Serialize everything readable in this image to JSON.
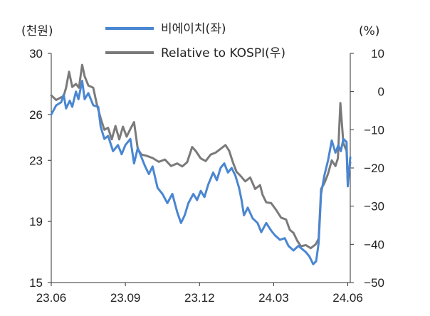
{
  "chart_data": {
    "type": "line",
    "left_unit": "(천원)",
    "right_unit": "(%)",
    "x_labels": [
      "23.06",
      "23.09",
      "23.12",
      "24.03",
      "24.06"
    ],
    "x_range": [
      0,
      12.1
    ],
    "left_axis": {
      "ticks": [
        "30",
        "26",
        "23",
        "19",
        "15"
      ],
      "ylim": [
        15,
        30
      ]
    },
    "right_axis": {
      "ticks": [
        "10",
        "0",
        "-10",
        "-20",
        "-30",
        "-40",
        "-50"
      ],
      "ylim": [
        -50,
        10
      ]
    },
    "legend_position": "top",
    "series": [
      {
        "name": "비에이치(좌)",
        "axis": "left",
        "color": "#4a86d1",
        "points": [
          [
            0.0,
            26.0
          ],
          [
            0.2,
            26.6
          ],
          [
            0.4,
            26.8
          ],
          [
            0.5,
            27.3
          ],
          [
            0.6,
            26.4
          ],
          [
            0.75,
            26.9
          ],
          [
            0.85,
            26.5
          ],
          [
            1.0,
            27.5
          ],
          [
            1.1,
            27.0
          ],
          [
            1.25,
            28.2
          ],
          [
            1.35,
            27.0
          ],
          [
            1.5,
            27.4
          ],
          [
            1.7,
            26.6
          ],
          [
            1.9,
            26.5
          ],
          [
            2.0,
            25.2
          ],
          [
            2.15,
            24.4
          ],
          [
            2.3,
            24.6
          ],
          [
            2.5,
            23.6
          ],
          [
            2.7,
            24.0
          ],
          [
            2.85,
            23.4
          ],
          [
            3.0,
            24.0
          ],
          [
            3.2,
            24.4
          ],
          [
            3.35,
            22.8
          ],
          [
            3.5,
            23.8
          ],
          [
            3.65,
            23.2
          ],
          [
            3.8,
            22.6
          ],
          [
            3.95,
            22.1
          ],
          [
            4.1,
            22.6
          ],
          [
            4.3,
            21.2
          ],
          [
            4.5,
            20.8
          ],
          [
            4.7,
            20.2
          ],
          [
            4.9,
            20.8
          ],
          [
            5.1,
            19.6
          ],
          [
            5.25,
            18.9
          ],
          [
            5.4,
            19.4
          ],
          [
            5.55,
            20.2
          ],
          [
            5.75,
            20.8
          ],
          [
            5.9,
            20.4
          ],
          [
            6.05,
            21.0
          ],
          [
            6.2,
            20.6
          ],
          [
            6.35,
            21.4
          ],
          [
            6.55,
            22.2
          ],
          [
            6.7,
            21.7
          ],
          [
            6.85,
            22.5
          ],
          [
            7.0,
            22.8
          ],
          [
            7.15,
            22.2
          ],
          [
            7.3,
            22.5
          ],
          [
            7.45,
            22.0
          ],
          [
            7.6,
            21.2
          ],
          [
            7.7,
            20.4
          ],
          [
            7.8,
            19.4
          ],
          [
            7.95,
            19.9
          ],
          [
            8.15,
            19.2
          ],
          [
            8.35,
            18.9
          ],
          [
            8.5,
            18.3
          ],
          [
            8.7,
            18.9
          ],
          [
            8.9,
            18.4
          ],
          [
            9.05,
            18.1
          ],
          [
            9.25,
            17.8
          ],
          [
            9.45,
            17.9
          ],
          [
            9.6,
            17.4
          ],
          [
            9.8,
            17.1
          ],
          [
            10.0,
            17.4
          ],
          [
            10.15,
            17.2
          ],
          [
            10.3,
            17.0
          ],
          [
            10.45,
            16.7
          ],
          [
            10.6,
            16.2
          ],
          [
            10.72,
            16.4
          ],
          [
            10.82,
            17.6
          ],
          [
            10.92,
            20.8
          ],
          [
            11.05,
            22.0
          ],
          [
            11.2,
            23.0
          ],
          [
            11.35,
            24.3
          ],
          [
            11.5,
            23.5
          ],
          [
            11.62,
            24.0
          ],
          [
            11.72,
            23.6
          ],
          [
            11.82,
            24.4
          ],
          [
            11.95,
            24.2
          ],
          [
            12.0,
            21.3
          ],
          [
            12.1,
            23.2
          ]
        ]
      },
      {
        "name": "Relative to KOSPI(우)",
        "axis": "right",
        "color": "#7a7a7a",
        "points": [
          [
            0.0,
            -1.0
          ],
          [
            0.2,
            -2.2
          ],
          [
            0.4,
            -1.5
          ],
          [
            0.5,
            -1.2
          ],
          [
            0.6,
            1.0
          ],
          [
            0.72,
            5.2
          ],
          [
            0.85,
            1.2
          ],
          [
            1.0,
            2.0
          ],
          [
            1.12,
            1.0
          ],
          [
            1.25,
            7.0
          ],
          [
            1.35,
            4.0
          ],
          [
            1.5,
            1.6
          ],
          [
            1.7,
            1.0
          ],
          [
            1.85,
            -3.5
          ],
          [
            2.0,
            -7.0
          ],
          [
            2.15,
            -10.0
          ],
          [
            2.3,
            -9.5
          ],
          [
            2.45,
            -12.5
          ],
          [
            2.6,
            -9.0
          ],
          [
            2.75,
            -12.5
          ],
          [
            2.9,
            -9.2
          ],
          [
            3.05,
            -11.8
          ],
          [
            3.2,
            -9.8
          ],
          [
            3.35,
            -8.0
          ],
          [
            3.5,
            -15.0
          ],
          [
            3.65,
            -16.5
          ],
          [
            3.85,
            -16.8
          ],
          [
            4.1,
            -17.4
          ],
          [
            4.35,
            -18.4
          ],
          [
            4.6,
            -17.8
          ],
          [
            4.85,
            -19.5
          ],
          [
            5.1,
            -18.8
          ],
          [
            5.3,
            -19.6
          ],
          [
            5.5,
            -18.5
          ],
          [
            5.7,
            -14.5
          ],
          [
            5.85,
            -15.6
          ],
          [
            6.05,
            -17.5
          ],
          [
            6.25,
            -18.2
          ],
          [
            6.45,
            -16.5
          ],
          [
            6.65,
            -16.0
          ],
          [
            6.85,
            -15.0
          ],
          [
            7.05,
            -14.0
          ],
          [
            7.2,
            -15.5
          ],
          [
            7.35,
            -18.5
          ],
          [
            7.5,
            -21.0
          ],
          [
            7.65,
            -22.0
          ],
          [
            7.85,
            -23.5
          ],
          [
            8.05,
            -22.5
          ],
          [
            8.25,
            -25.5
          ],
          [
            8.45,
            -24.5
          ],
          [
            8.55,
            -27.0
          ],
          [
            8.7,
            -29.0
          ],
          [
            8.9,
            -29.2
          ],
          [
            9.1,
            -31.0
          ],
          [
            9.3,
            -33.0
          ],
          [
            9.5,
            -33.5
          ],
          [
            9.65,
            -36.2
          ],
          [
            9.8,
            -37.0
          ],
          [
            9.95,
            -39.0
          ],
          [
            10.1,
            -40.5
          ],
          [
            10.3,
            -40.2
          ],
          [
            10.5,
            -41.0
          ],
          [
            10.7,
            -40.0
          ],
          [
            10.82,
            -38.5
          ],
          [
            10.92,
            -25.5
          ],
          [
            11.05,
            -24.0
          ],
          [
            11.2,
            -21.5
          ],
          [
            11.35,
            -18.0
          ],
          [
            11.5,
            -19.5
          ],
          [
            11.6,
            -17.5
          ],
          [
            11.7,
            -3.0
          ],
          [
            11.82,
            -13.5
          ],
          [
            11.95,
            -15.5
          ],
          [
            12.0,
            -24.0
          ],
          [
            12.1,
            -18.5
          ]
        ]
      }
    ]
  }
}
